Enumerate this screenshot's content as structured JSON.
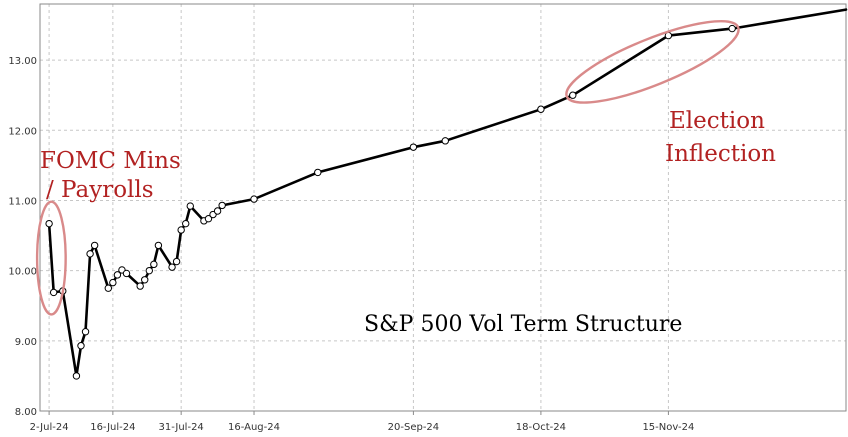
{
  "chart_data": {
    "type": "line",
    "title": "S&P 500 Vol Term Structure",
    "xlabel": "",
    "ylabel": "",
    "ylim": [
      8,
      13.8
    ],
    "xlim": [
      "2024-06-30",
      "2024-12-24"
    ],
    "y_ticks": [
      8,
      9,
      10,
      11,
      12,
      13
    ],
    "y_tick_labels": [
      "8.00",
      "9.00",
      "10.00",
      "11.00",
      "12.00",
      "13.00"
    ],
    "x_ticks": [
      {
        "date": "2024-07-02",
        "label": "2-Jul-24"
      },
      {
        "date": "2024-07-16",
        "label": "16-Jul-24"
      },
      {
        "date": "2024-07-31",
        "label": "31-Jul-24"
      },
      {
        "date": "2024-08-16",
        "label": "16-Aug-24"
      },
      {
        "date": "2024-09-20",
        "label": "20-Sep-24"
      },
      {
        "date": "2024-10-18",
        "label": "18-Oct-24"
      },
      {
        "date": "2024-11-15",
        "label": "15-Nov-24"
      }
    ],
    "grid": true,
    "series": [
      {
        "color": "#000000",
        "points": [
          {
            "x": "2024-07-02",
            "y": 10.67
          },
          {
            "x": "2024-07-03",
            "y": 9.69
          },
          {
            "x": "2024-07-05",
            "y": 9.71
          },
          {
            "x": "2024-07-08",
            "y": 8.5
          },
          {
            "x": "2024-07-09",
            "y": 8.93
          },
          {
            "x": "2024-07-10",
            "y": 9.13
          },
          {
            "x": "2024-07-11",
            "y": 10.24
          },
          {
            "x": "2024-07-12",
            "y": 10.36
          },
          {
            "x": "2024-07-15",
            "y": 9.75
          },
          {
            "x": "2024-07-16",
            "y": 9.83
          },
          {
            "x": "2024-07-17",
            "y": 9.94
          },
          {
            "x": "2024-07-18",
            "y": 10.01
          },
          {
            "x": "2024-07-19",
            "y": 9.96
          },
          {
            "x": "2024-07-22",
            "y": 9.78
          },
          {
            "x": "2024-07-23",
            "y": 9.87
          },
          {
            "x": "2024-07-24",
            "y": 10.0
          },
          {
            "x": "2024-07-25",
            "y": 10.09
          },
          {
            "x": "2024-07-26",
            "y": 10.36
          },
          {
            "x": "2024-07-29",
            "y": 10.05
          },
          {
            "x": "2024-07-30",
            "y": 10.13
          },
          {
            "x": "2024-07-31",
            "y": 10.58
          },
          {
            "x": "2024-08-01",
            "y": 10.67
          },
          {
            "x": "2024-08-02",
            "y": 10.92
          },
          {
            "x": "2024-08-05",
            "y": 10.71
          },
          {
            "x": "2024-08-06",
            "y": 10.74
          },
          {
            "x": "2024-08-07",
            "y": 10.8
          },
          {
            "x": "2024-08-08",
            "y": 10.85
          },
          {
            "x": "2024-08-09",
            "y": 10.93
          },
          {
            "x": "2024-08-16",
            "y": 11.02
          },
          {
            "x": "2024-08-30",
            "y": 11.4
          },
          {
            "x": "2024-09-20",
            "y": 11.76
          },
          {
            "x": "2024-09-27",
            "y": 11.85
          },
          {
            "x": "2024-10-18",
            "y": 12.3
          },
          {
            "x": "2024-10-25",
            "y": 12.5
          },
          {
            "x": "2024-11-15",
            "y": 13.35
          },
          {
            "x": "2024-11-29",
            "y": 13.45
          },
          {
            "x": "2024-12-24",
            "y": 13.72
          }
        ]
      }
    ],
    "markers_until": "2024-11-29",
    "annotations": [
      {
        "lines": [
          "FOMC Mins",
          "/ Payrolls"
        ],
        "color": "#b22222",
        "circles": [
          "2024-07-02",
          "2024-07-03"
        ]
      },
      {
        "lines": [
          "Election",
          "Inflection"
        ],
        "color": "#b22222",
        "circles": [
          "2024-10-25",
          "2024-11-29"
        ]
      }
    ]
  }
}
